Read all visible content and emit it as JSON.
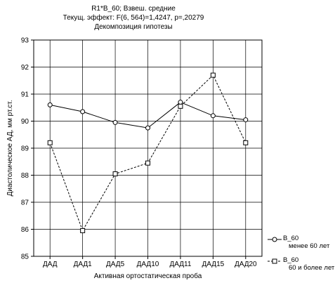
{
  "chart_data": {
    "type": "line",
    "title": "R1*B_60; Взвеш. средние",
    "subtitle": "Текущ.  эффект: F(6, 564)=1,4247, p=,20279",
    "subtitle2": "Декомпозиция гипотезы",
    "xlabel": "Активная ортостатическая проба",
    "ylabel": "Диастолическое АД, мм рт.ст.",
    "categories": [
      "ДАД",
      "ДАД1",
      "ДАД5",
      "ДАД10",
      "ДАД11",
      "ДАД15",
      "ДАД20"
    ],
    "ylim": [
      85,
      93
    ],
    "yticks": [
      85,
      86,
      87,
      88,
      89,
      90,
      91,
      92,
      93
    ],
    "grid": true,
    "series": [
      {
        "name": "B_60",
        "sublabel": "менее 60 лет",
        "marker": "circle",
        "line_style": "solid",
        "values": [
          90.6,
          90.35,
          89.95,
          89.75,
          90.7,
          90.2,
          90.05
        ]
      },
      {
        "name": "B_60",
        "sublabel": "60 и более лет",
        "marker": "square",
        "line_style": "dashed",
        "values": [
          89.2,
          85.95,
          88.05,
          88.45,
          90.55,
          91.7,
          89.2
        ]
      }
    ],
    "legend_position": "bottom-right"
  }
}
